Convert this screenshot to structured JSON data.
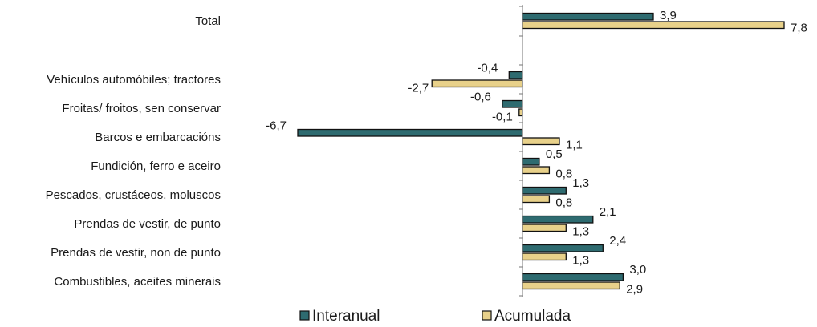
{
  "chart_data": {
    "type": "bar",
    "orientation": "horizontal",
    "categories": [
      "Total",
      "Vehículos automóbiles; tractores",
      "Froitas/ froitos, sen conservar",
      "Barcos e embarcacións",
      "Fundición, ferro e aceiro",
      "Pescados, crustáceos, moluscos",
      "Prendas de vestir, de punto",
      "Prendas de vestir, non de punto",
      "Combustibles, aceites minerais"
    ],
    "series": [
      {
        "name": "Interanual",
        "color": "#2E6B70",
        "values": [
          3.9,
          -0.4,
          -0.6,
          -6.7,
          0.5,
          1.3,
          2.1,
          2.4,
          3.0
        ],
        "labels": [
          "3,9",
          "-0,4",
          "-0,6",
          "-6,7",
          "0,5",
          "1,3",
          "2,1",
          "2,4",
          "3,0"
        ]
      },
      {
        "name": "Acumulada",
        "color": "#E8D18A",
        "values": [
          7.8,
          -2.7,
          -0.1,
          1.1,
          0.8,
          0.8,
          1.3,
          1.3,
          2.9
        ],
        "labels": [
          "7,8",
          "-2,7",
          "-0,1",
          "1,1",
          "0,8",
          "0,8",
          "1,3",
          "1,3",
          "2,9"
        ]
      }
    ],
    "xlim": [
      -6.7,
      7.8
    ],
    "grid": false,
    "legend_position": "bottom"
  }
}
